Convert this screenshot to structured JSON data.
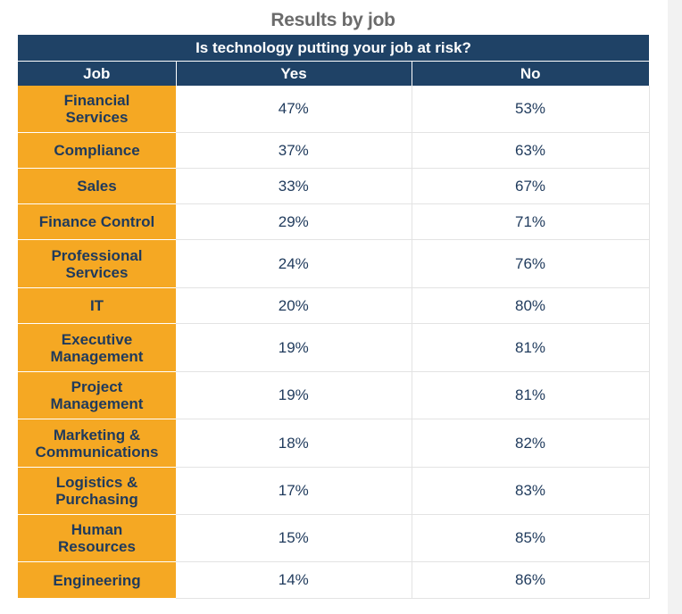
{
  "chart_data": {
    "type": "table",
    "title": "Results by job",
    "subtitle": "Is technology putting your job at risk?",
    "columns": [
      "Job",
      "Yes",
      "No"
    ],
    "rows": [
      {
        "job": "Financial Services",
        "yes": "47%",
        "no": "53%"
      },
      {
        "job": "Compliance",
        "yes": "37%",
        "no": "63%"
      },
      {
        "job": "Sales",
        "yes": "33%",
        "no": "67%"
      },
      {
        "job": "Finance Control",
        "yes": "29%",
        "no": "71%"
      },
      {
        "job": "Professional Services",
        "yes": "24%",
        "no": "76%"
      },
      {
        "job": "IT",
        "yes": "20%",
        "no": "80%"
      },
      {
        "job": "Executive Management",
        "yes": "19%",
        "no": "81%"
      },
      {
        "job": "Project Management",
        "yes": "19%",
        "no": "81%"
      },
      {
        "job": "Marketing & Communications",
        "yes": "18%",
        "no": "82%"
      },
      {
        "job": "Logistics & Purchasing",
        "yes": "17%",
        "no": "83%"
      },
      {
        "job": "Human Resources",
        "yes": "15%",
        "no": "85%"
      },
      {
        "job": "Engineering",
        "yes": "14%",
        "no": "86%"
      }
    ]
  },
  "colors": {
    "header_bg": "#1f4266",
    "job_bg": "#f5a823",
    "text": "#1f3a5c",
    "title": "#6b6b6b"
  }
}
